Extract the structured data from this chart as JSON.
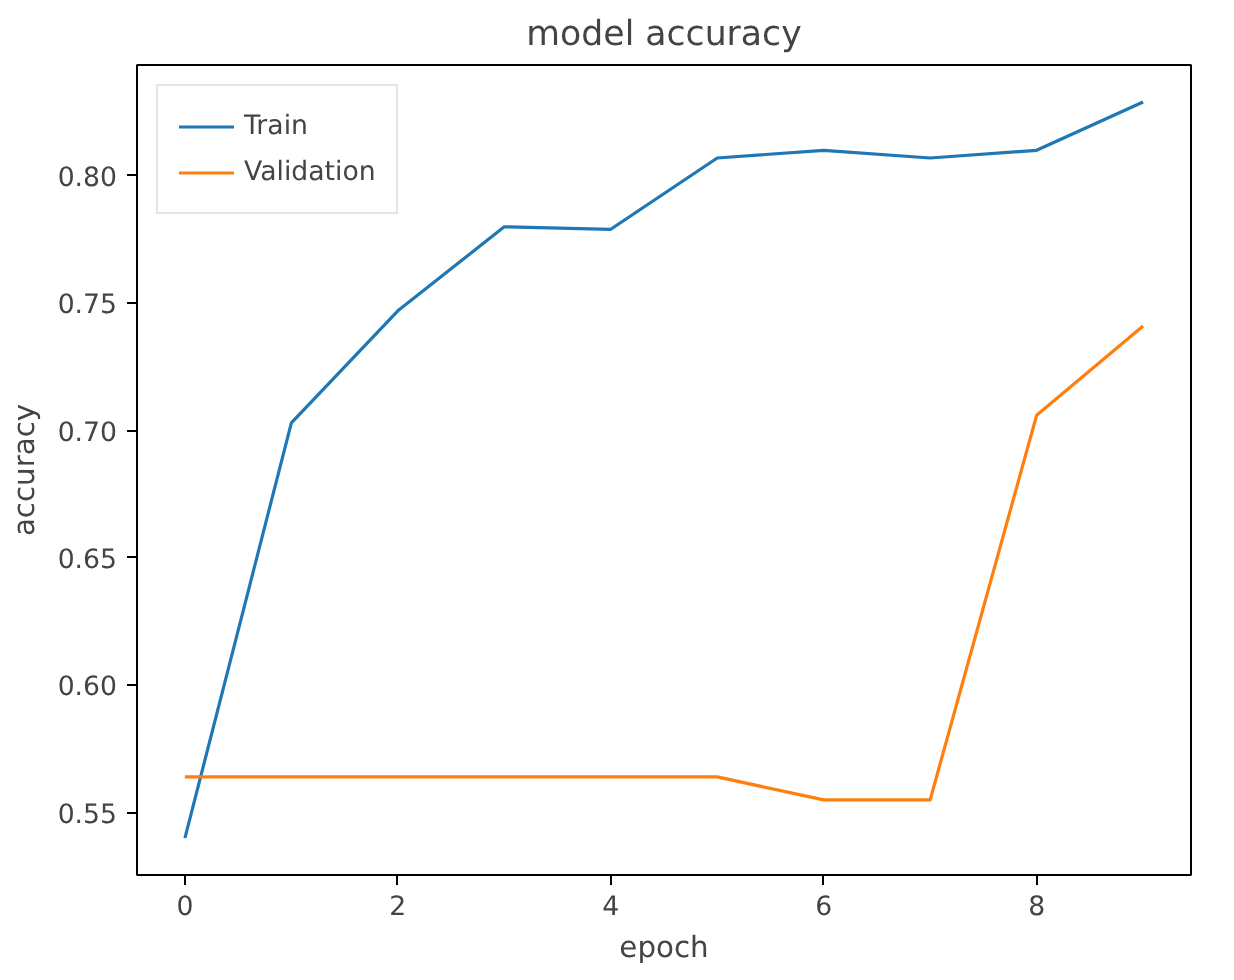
{
  "chart_data": {
    "type": "line",
    "title": "model accuracy",
    "xlabel": "epoch",
    "ylabel": "accuracy",
    "x": [
      0,
      1,
      2,
      3,
      4,
      5,
      6,
      7,
      8,
      9
    ],
    "series": [
      {
        "name": "Train",
        "color": "#1f77b4",
        "values": [
          0.54,
          0.703,
          0.747,
          0.78,
          0.779,
          0.807,
          0.81,
          0.807,
          0.81,
          0.829
        ]
      },
      {
        "name": "Validation",
        "color": "#ff7f0e",
        "values": [
          0.564,
          0.564,
          0.564,
          0.564,
          0.564,
          0.564,
          0.555,
          0.555,
          0.706,
          0.741
        ]
      }
    ],
    "xlim": [
      -0.45,
      9.45
    ],
    "ylim": [
      0.5255,
      0.8435
    ],
    "xticks": [
      0,
      2,
      4,
      6,
      8
    ],
    "yticks": [
      {
        "value": 0.55,
        "label": "0.55"
      },
      {
        "value": 0.6,
        "label": "0.60"
      },
      {
        "value": 0.65,
        "label": "0.65"
      },
      {
        "value": 0.7,
        "label": "0.70"
      },
      {
        "value": 0.75,
        "label": "0.75"
      },
      {
        "value": 0.8,
        "label": "0.80"
      }
    ],
    "grid": false,
    "legend": "top left",
    "marker": "none",
    "line_style": "solid"
  }
}
